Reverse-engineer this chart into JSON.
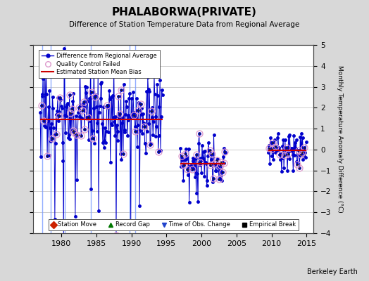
{
  "title": "PHALABORWA(PRIVATE)",
  "subtitle": "Difference of Station Temperature Data from Regional Average",
  "ylabel": "Monthly Temperature Anomaly Difference (°C)",
  "xlim": [
    1976,
    2016
  ],
  "ylim": [
    -4,
    5
  ],
  "yticks": [
    -4,
    -3,
    -2,
    -1,
    0,
    1,
    2,
    3,
    4,
    5
  ],
  "xticks": [
    1980,
    1985,
    1990,
    1995,
    2000,
    2005,
    2010,
    2015
  ],
  "background_color": "#d8d8d8",
  "plot_background": "#ffffff",
  "line_color": "#0000cc",
  "mean_bias_color": "#cc0000",
  "watermark": "Berkeley Earth",
  "vline_color": "#7799ff",
  "vlines": [
    1977.3,
    1978.5,
    1980.5,
    1984.2,
    1989.7,
    1990.5
  ],
  "seg1_start": 1977.0,
  "seg1_end": 1994.5,
  "seg1_bias": 1.5,
  "seg1_spread": 1.0,
  "seg2_start": 1997.0,
  "seg2_end": 2003.5,
  "seg2_bias": -0.65,
  "seg2_spread": 0.55,
  "seg3_start": 2009.5,
  "seg3_end": 2015.0,
  "seg3_bias": -0.1,
  "seg3_spread": 0.45,
  "seed": 17
}
